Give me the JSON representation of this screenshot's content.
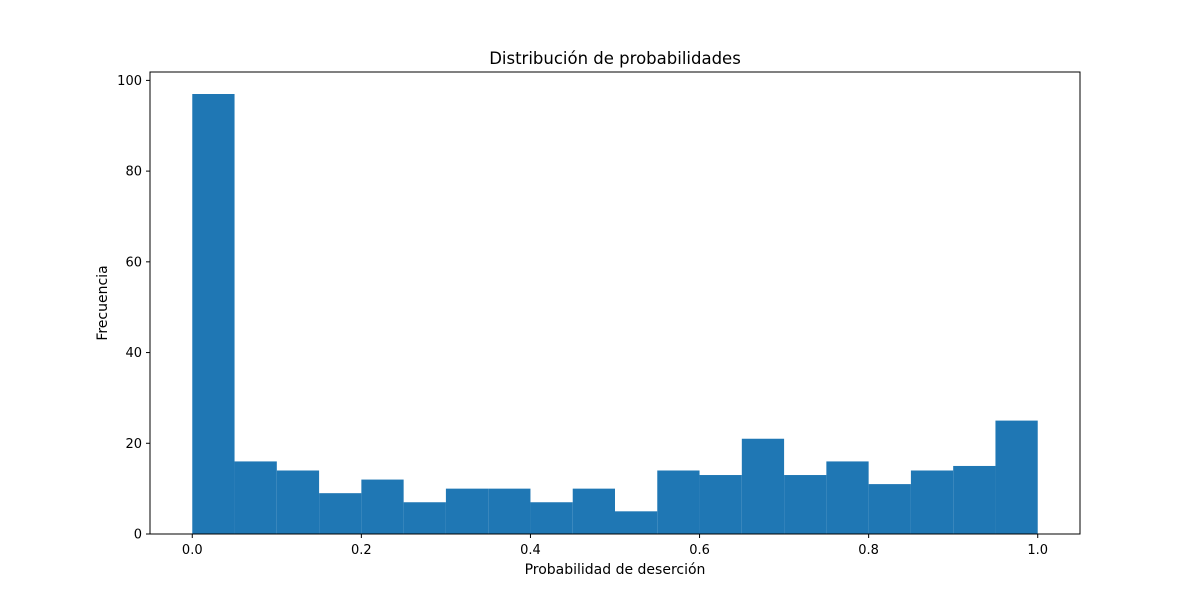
{
  "chart_data": {
    "type": "bar",
    "title": "Distribución de probabilidades",
    "xlabel": "Probabilidad de deserción",
    "ylabel": "Frecuencia",
    "bin_edges": [
      0.0,
      0.05,
      0.1,
      0.15,
      0.2,
      0.25,
      0.3,
      0.35,
      0.4,
      0.45,
      0.5,
      0.55,
      0.6,
      0.65,
      0.7,
      0.75,
      0.8,
      0.85,
      0.9,
      0.95,
      1.0
    ],
    "values": [
      97,
      16,
      14,
      9,
      12,
      7,
      10,
      10,
      7,
      10,
      5,
      14,
      13,
      21,
      13,
      16,
      11,
      14,
      15,
      25
    ],
    "xlim": [
      -0.05,
      1.05
    ],
    "ylim": [
      0,
      101.85
    ],
    "xticks": [
      0.0,
      0.2,
      0.4,
      0.6,
      0.8,
      1.0
    ],
    "xtick_labels": [
      "0.0",
      "0.2",
      "0.4",
      "0.6",
      "0.8",
      "1.0"
    ],
    "yticks": [
      0,
      20,
      40,
      60,
      80,
      100
    ],
    "ytick_labels": [
      "0",
      "20",
      "40",
      "60",
      "80",
      "100"
    ],
    "bar_color": "#1f77b4",
    "grid": false,
    "legend": "none"
  }
}
